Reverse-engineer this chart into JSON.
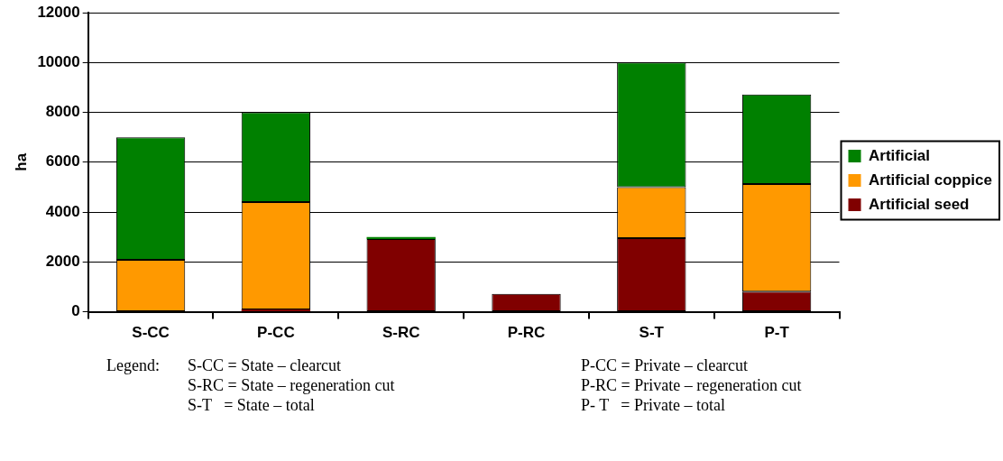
{
  "chart_data": {
    "type": "bar",
    "stacked": true,
    "ylabel": "ha",
    "categories": [
      "S-CC",
      "P-CC",
      "S-RC",
      "P-RC",
      "S-T",
      "P-T"
    ],
    "series": [
      {
        "name": "Artificial seed",
        "color": "#800000",
        "values": [
          0,
          90,
          2920,
          720,
          2950,
          810
        ]
      },
      {
        "name": "Artificial coppice",
        "color": "#ff9900",
        "values": [
          2080,
          4310,
          0,
          0,
          2050,
          4310
        ]
      },
      {
        "name": "Artificial",
        "color": "#008000",
        "values": [
          4920,
          3600,
          80,
          0,
          5000,
          3600
        ]
      }
    ],
    "ylim": [
      0,
      12000
    ],
    "yticks": [
      0,
      2000,
      4000,
      6000,
      8000,
      10000,
      12000
    ],
    "grid": "y",
    "legend": "right",
    "annotations": [
      "Legend:",
      "S-CC = State – clearcut",
      "P-CC = Private – clearcut",
      "S-RC = State – regeneration cut",
      "P-RC = Private – regeneration cut",
      "S-T   = State – total",
      "P- T   = Private – total"
    ]
  }
}
